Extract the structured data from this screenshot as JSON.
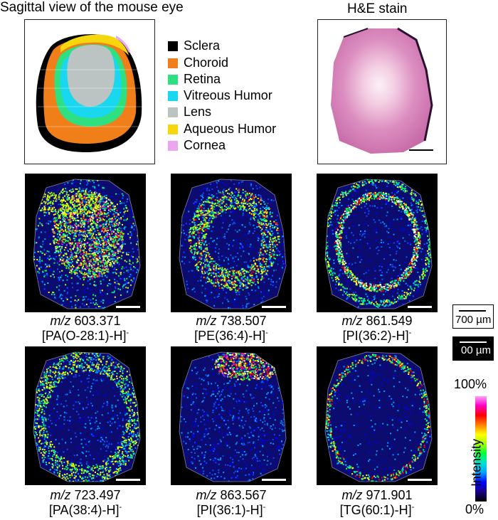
{
  "schematic": {
    "title": "Sagittal view of the mouse eye",
    "legend": [
      {
        "label": "Sclera",
        "color": "#000000"
      },
      {
        "label": "Choroid",
        "color": "#f07f1a"
      },
      {
        "label": "Retina",
        "color": "#2ee07f"
      },
      {
        "label": "Vitreous Humor",
        "color": "#19d7ee"
      },
      {
        "label": "Lens",
        "color": "#bcc3c3"
      },
      {
        "label": "Aqueous Humor",
        "color": "#f5d70c"
      },
      {
        "label": "Cornea",
        "color": "#eba6ee"
      }
    ]
  },
  "he": {
    "title": "H&E stain"
  },
  "panels": [
    {
      "mz_prefix": "m/z",
      "mz": "603.371",
      "lipid": "[PA(O-28:1)-H]",
      "charge": "-",
      "pattern": "center"
    },
    {
      "mz_prefix": "m/z",
      "mz": "738.507",
      "lipid": "[PE(36:4)-H]",
      "charge": "-",
      "pattern": "ring"
    },
    {
      "mz_prefix": "m/z",
      "mz": "861.549",
      "lipid": "[PI(36:2)-H]",
      "charge": "-",
      "pattern": "thin-ring"
    },
    {
      "mz_prefix": "m/z",
      "mz": "723.497",
      "lipid": "[PA(38:4)-H]",
      "charge": "-",
      "pattern": "outer"
    },
    {
      "mz_prefix": "m/z",
      "mz": "863.567",
      "lipid": "[PI(36:1)-H]",
      "charge": "-",
      "pattern": "top"
    },
    {
      "mz_prefix": "m/z",
      "mz": "971.901",
      "lipid": "[TG(60:1)-H]",
      "charge": "-",
      "pattern": "sparse"
    }
  ],
  "scale": {
    "bar1_label": "700 µm",
    "bar2_label": "00 µm"
  },
  "colorbar": {
    "max_label": "100%",
    "min_label": "0%",
    "axis_label": "Intensity",
    "stops": [
      "#000000",
      "#1a0080",
      "#0000ff",
      "#00a0ff",
      "#00e0d0",
      "#00ff40",
      "#a0ff00",
      "#ffff00",
      "#ff8000",
      "#ff0000",
      "#ff00c0",
      "#ff9cff"
    ]
  }
}
